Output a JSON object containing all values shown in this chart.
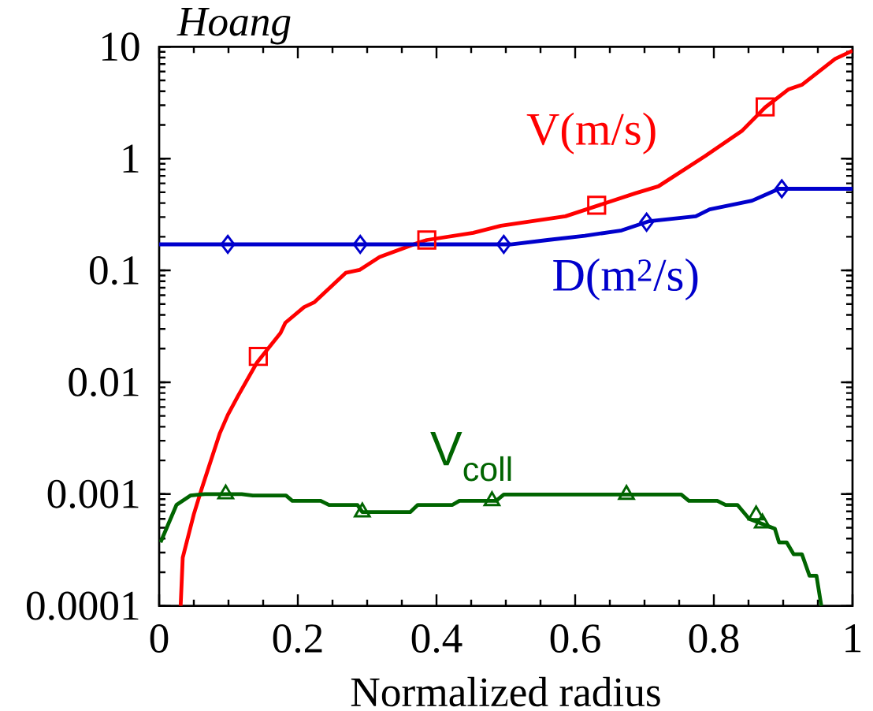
{
  "chart_data": {
    "type": "line",
    "xlabel": "Normalized radius",
    "annotations": [
      "Hoang"
    ],
    "log": "y",
    "xlim": [
      0,
      1
    ],
    "ylim": [
      0.0001,
      10
    ],
    "xticks": [
      0,
      0.2,
      0.4,
      0.6,
      0.8,
      1
    ],
    "yticks": [
      0.0001,
      0.001,
      0.01,
      0.1,
      1,
      10
    ],
    "grid": false,
    "series": [
      {
        "name": "V(m/s)",
        "type": "line",
        "color": "#ff0000",
        "x": [
          0.031,
          0.034,
          0.05,
          0.061,
          0.0875,
          0.099,
          0.114,
          0.141,
          0.175,
          0.182,
          0.209,
          0.224,
          0.269,
          0.289,
          0.318,
          0.375,
          0.386,
          0.453,
          0.493,
          0.586,
          0.687,
          0.72,
          0.787,
          0.841,
          0.874,
          0.908,
          0.927,
          0.975,
          1.0
        ],
        "values": [
          0.0001,
          0.00027,
          0.00066,
          0.0011,
          0.0035,
          0.0051,
          0.0076,
          0.015,
          0.0275,
          0.034,
          0.047,
          0.052,
          0.095,
          0.101,
          0.132,
          0.178,
          0.187,
          0.217,
          0.251,
          0.305,
          0.49,
          0.565,
          1.05,
          1.78,
          2.87,
          4.17,
          4.57,
          7.8,
          9.2
        ]
      },
      {
        "type": "scatter",
        "color": "#ff0000",
        "marker": "square",
        "x": [
          0.143,
          0.386,
          0.631,
          0.874
        ],
        "values": [
          0.017,
          0.187,
          0.383,
          2.9
        ]
      },
      {
        "name": "D(m$^{2}$/s)",
        "type": "line",
        "color": "#0000cc",
        "x": [
          0,
          0.507,
          0.56,
          0.614,
          0.667,
          0.707,
          0.774,
          0.794,
          0.855,
          0.894,
          1.0
        ],
        "values": [
          0.171,
          0.171,
          0.187,
          0.204,
          0.228,
          0.276,
          0.305,
          0.352,
          0.42,
          0.537,
          0.537
        ]
      },
      {
        "type": "scatter",
        "color": "#0000cc",
        "marker": "diamond",
        "x": [
          0.099,
          0.29,
          0.497,
          0.703,
          0.898
        ],
        "values": [
          0.171,
          0.171,
          0.171,
          0.27,
          0.537
        ]
      },
      {
        "name": "V$_{coll}$",
        "type": "line",
        "color": "#006400",
        "x": [
          0.002,
          0.025,
          0.045,
          0.066,
          0.119,
          0.135,
          0.183,
          0.192,
          0.233,
          0.245,
          0.286,
          0.293,
          0.362,
          0.373,
          0.423,
          0.433,
          0.486,
          0.497,
          0.753,
          0.764,
          0.805,
          0.817,
          0.834,
          0.851,
          0.888,
          0.894,
          0.905,
          0.915,
          0.927,
          0.938,
          0.948,
          0.955
        ],
        "values": [
          0.00037,
          0.0008,
          0.00097,
          0.001,
          0.001,
          0.00097,
          0.00097,
          0.00087,
          0.00087,
          0.0008,
          0.0008,
          0.00069,
          0.00069,
          0.0008,
          0.0008,
          0.00087,
          0.00087,
          0.00099,
          0.00099,
          0.00087,
          0.00087,
          0.0008,
          0.0008,
          0.0006,
          0.00049,
          0.00037,
          0.00037,
          0.00029,
          0.00029,
          0.000186,
          0.000186,
          0.0001
        ]
      },
      {
        "type": "scatter",
        "color": "#006400",
        "marker": "triangle",
        "x": [
          0.096,
          0.293,
          0.48,
          0.674,
          0.861,
          0.87
        ],
        "values": [
          0.001,
          0.00069,
          0.00087,
          0.00099,
          0.00065,
          0.00055
        ]
      }
    ]
  }
}
